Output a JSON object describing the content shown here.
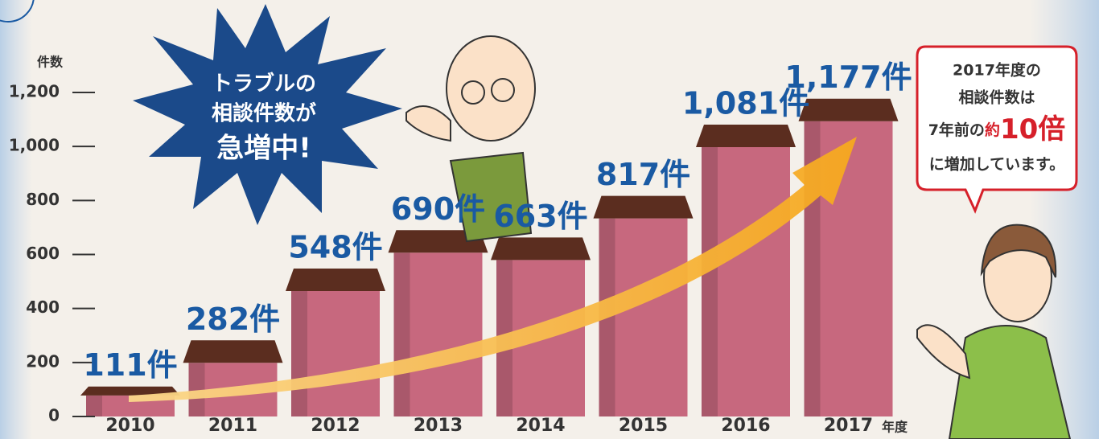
{
  "chart_data": {
    "type": "bar",
    "y_axis_label": "件数",
    "x_axis_label": "年度",
    "categories": [
      "2010",
      "2011",
      "2012",
      "2013",
      "2014",
      "2015",
      "2016",
      "2017"
    ],
    "values": [
      111,
      282,
      548,
      690,
      663,
      817,
      1081,
      1177
    ],
    "value_labels": [
      "111件",
      "282件",
      "548件",
      "690件",
      "663件",
      "817件",
      "1,081件",
      "1,177件"
    ],
    "color": "#c7687e",
    "roof_color": "#5b2d1f",
    "ylim": [
      0,
      1200
    ],
    "yticks": [
      0,
      200,
      400,
      600,
      800,
      {
        "value": 1000,
        "label": "1,000"
      },
      {
        "value": 1200,
        "label": "1,200"
      }
    ],
    "annotations": {
      "starburst": [
        "トラブルの",
        "相談件数が",
        "急増中!"
      ],
      "callout": [
        "2017年度の",
        "相談件数は",
        {
          "parts": [
            "7年前の",
            "約",
            "10倍"
          ]
        },
        "に増加しています。"
      ]
    }
  }
}
